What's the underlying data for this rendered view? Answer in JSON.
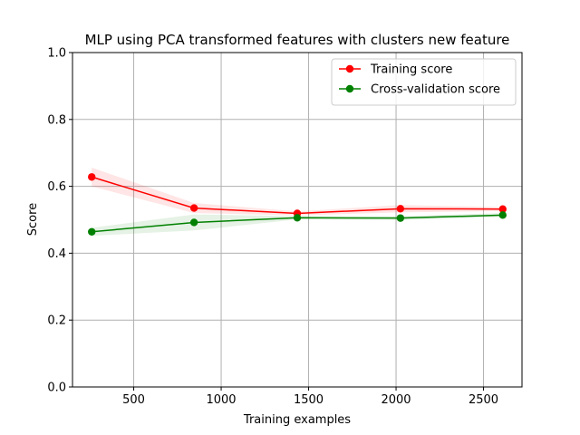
{
  "chart_data": {
    "type": "line",
    "title": "MLP using PCA transformed features with clusters new feature",
    "xlabel": "Training examples",
    "ylabel": "Score",
    "xlim": [
      150,
      2720
    ],
    "ylim": [
      0.0,
      1.0
    ],
    "xticks": [
      500,
      1000,
      1500,
      2000,
      2500
    ],
    "yticks": [
      0.0,
      0.2,
      0.4,
      0.6,
      0.8,
      1.0
    ],
    "xtick_labels": [
      "500",
      "1000",
      "1500",
      "2000",
      "2500"
    ],
    "ytick_labels": [
      "0.0",
      "0.2",
      "0.4",
      "0.6",
      "0.8",
      "1.0"
    ],
    "grid": true,
    "legend_position": "top-right",
    "x": [
      260,
      845,
      1435,
      2025,
      2610
    ],
    "series": [
      {
        "name": "Training score",
        "color": "#ff0000",
        "band_color": "#ff0000",
        "values": [
          0.628,
          0.535,
          0.519,
          0.533,
          0.532
        ],
        "lower": [
          0.6,
          0.52,
          0.513,
          0.522,
          0.526
        ],
        "upper": [
          0.656,
          0.55,
          0.525,
          0.544,
          0.538
        ]
      },
      {
        "name": "Cross-validation score",
        "color": "#008000",
        "band_color": "#008000",
        "values": [
          0.464,
          0.492,
          0.506,
          0.505,
          0.514
        ],
        "lower": [
          0.452,
          0.468,
          0.501,
          0.499,
          0.508
        ],
        "upper": [
          0.476,
          0.516,
          0.511,
          0.511,
          0.52
        ]
      }
    ]
  }
}
